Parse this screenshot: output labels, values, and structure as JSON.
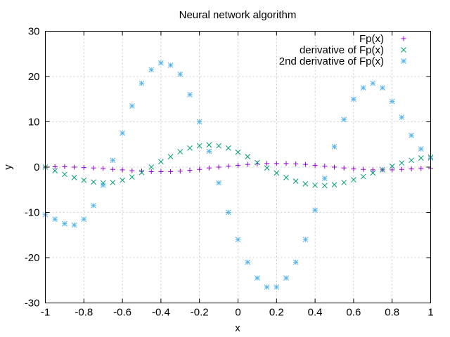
{
  "chart_data": {
    "type": "scatter",
    "title": "Neural network algorithm",
    "xlabel": "x",
    "ylabel": "y",
    "xlim": [
      -1,
      1
    ],
    "ylim": [
      -30,
      30
    ],
    "xticks": [
      -1,
      -0.8,
      -0.6,
      -0.4,
      -0.2,
      0,
      0.2,
      0.4,
      0.6,
      0.8,
      1
    ],
    "xtick_labels": [
      "-1",
      "-0.8",
      "-0.6",
      "-0.4",
      "-0.2",
      "0",
      "0.2",
      "0.4",
      "0.6",
      "0.8",
      "1"
    ],
    "yticks": [
      -30,
      -20,
      -10,
      0,
      10,
      20,
      30
    ],
    "ytick_labels": [
      "-30",
      "-20",
      "-10",
      "0",
      "10",
      "20",
      "30"
    ],
    "grid": true,
    "legend_position": "top-right",
    "x": [
      -1.0,
      -0.95,
      -0.9,
      -0.85,
      -0.8,
      -0.75,
      -0.7,
      -0.65,
      -0.6,
      -0.55,
      -0.5,
      -0.45,
      -0.4,
      -0.35,
      -0.3,
      -0.25,
      -0.2,
      -0.15,
      -0.1,
      -0.05,
      0.0,
      0.05,
      0.1,
      0.15,
      0.2,
      0.25,
      0.3,
      0.35,
      0.4,
      0.45,
      0.5,
      0.55,
      0.6,
      0.65,
      0.7,
      0.75,
      0.8,
      0.85,
      0.9,
      0.95,
      1.0
    ],
    "series": [
      {
        "name": "Fp(x)",
        "marker": "plus",
        "color": "#9400d3",
        "values": [
          0.0,
          0.1,
          0.1,
          0.0,
          -0.1,
          -0.2,
          -0.3,
          -0.5,
          -0.6,
          -0.8,
          -0.9,
          -1.0,
          -1.0,
          -1.0,
          -0.9,
          -0.7,
          -0.5,
          -0.2,
          0.0,
          0.2,
          0.4,
          0.6,
          0.7,
          0.8,
          0.8,
          0.8,
          0.7,
          0.6,
          0.4,
          0.2,
          0.0,
          -0.2,
          -0.4,
          -0.5,
          -0.6,
          -0.6,
          -0.6,
          -0.5,
          -0.4,
          -0.3,
          -0.3
        ]
      },
      {
        "name": "derivative of Fp(x)",
        "marker": "cross",
        "color": "#009e73",
        "values": [
          0.0,
          -0.8,
          -1.6,
          -2.3,
          -2.9,
          -3.3,
          -3.5,
          -3.4,
          -2.9,
          -2.2,
          -1.2,
          0.0,
          1.2,
          2.3,
          3.4,
          4.2,
          4.7,
          4.9,
          4.7,
          4.2,
          3.3,
          2.3,
          1.0,
          -0.2,
          -1.3,
          -2.3,
          -3.1,
          -3.7,
          -4.0,
          -4.1,
          -3.9,
          -3.4,
          -2.8,
          -2.1,
          -1.3,
          -0.6,
          0.2,
          0.9,
          1.5,
          2.0,
          2.2
        ]
      },
      {
        "name": "2nd derivative of Fp(x)",
        "marker": "star",
        "color": "#56b4e9",
        "values": [
          -10.5,
          -11.5,
          -12.5,
          -12.8,
          -11.5,
          -8.5,
          -4.0,
          1.5,
          7.5,
          13.5,
          18.5,
          21.5,
          23.0,
          22.5,
          20.5,
          16.0,
          10.0,
          3.5,
          -3.5,
          -10.0,
          -16.0,
          -21.0,
          -24.5,
          -26.5,
          -26.5,
          -24.5,
          -21.0,
          -16.0,
          -9.5,
          -2.5,
          4.5,
          10.5,
          15.0,
          17.5,
          18.5,
          17.5,
          14.5,
          11.0,
          7.0,
          4.0,
          2.0
        ]
      }
    ]
  }
}
